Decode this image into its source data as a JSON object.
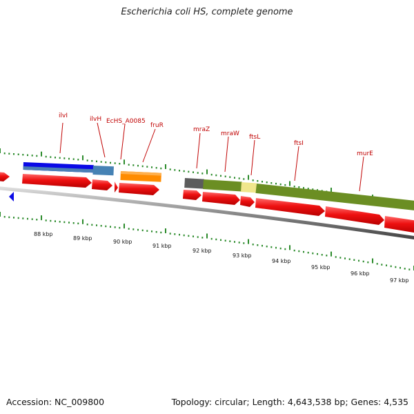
{
  "title": "Escherichia coli HS, complete genome",
  "footer": {
    "accession": "Accession: NC_009800",
    "summary": "Topology: circular; Length: 4,643,538 bp; Genes: 4,535"
  },
  "colors": {
    "gene_label": "#c00000",
    "cds_red": "#ee1111",
    "tick_green": "#2a8a2a",
    "backbone": "#8a8a8a",
    "strand_blue": "#0a0ae6"
  },
  "gene_labels": [
    "ilvI",
    "ilvH",
    "EcHS_A0085",
    "fruR",
    "mraZ",
    "mraW",
    "ftsL",
    "ftsI",
    "murE"
  ],
  "scale_labels": [
    "88 kbp",
    "89 kbp",
    "90 kbp",
    "91 kbp",
    "92 kbp",
    "93 kbp",
    "94 kbp",
    "95 kbp",
    "96 kbp",
    "97 kbp"
  ]
}
